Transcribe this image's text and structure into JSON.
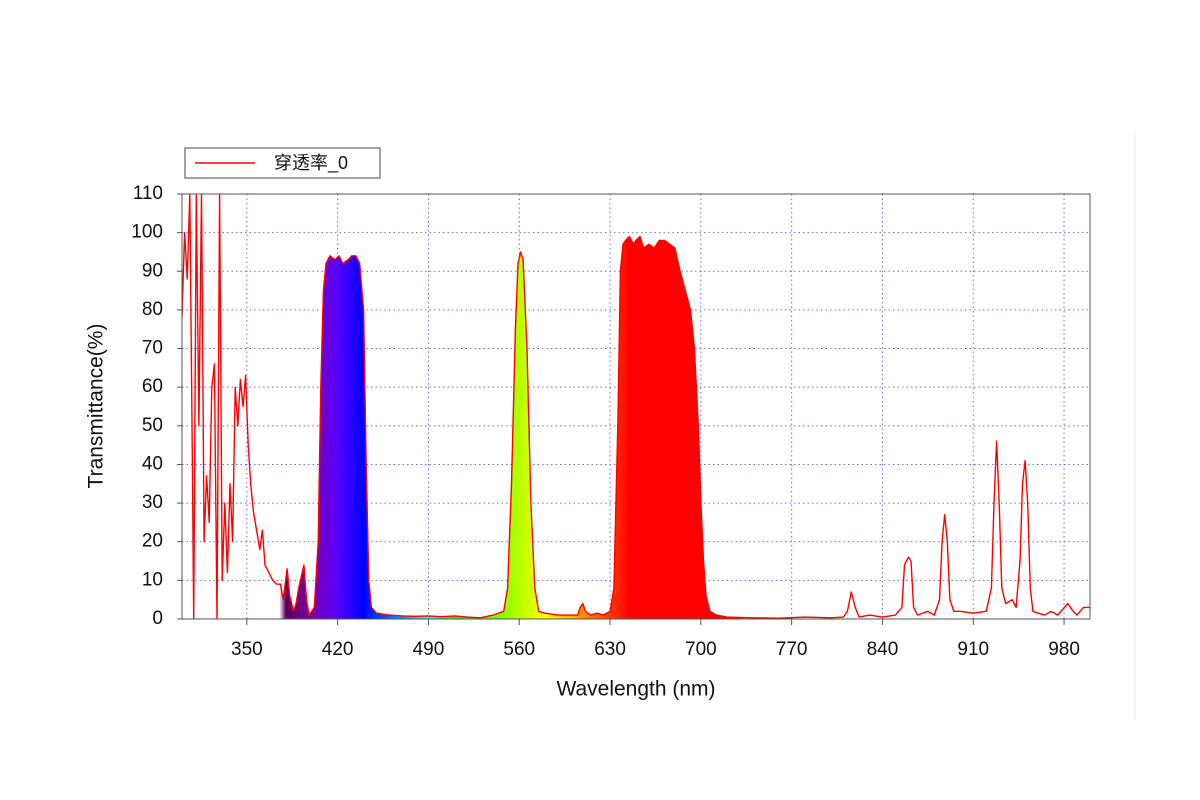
{
  "chart_data": {
    "type": "line",
    "xlabel": "Wavelength (nm)",
    "ylabel": "Transmittance(%)",
    "x": [
      300,
      302,
      304,
      306,
      308,
      309,
      311,
      313,
      315,
      317,
      319,
      321,
      323,
      325,
      327,
      329,
      331,
      333,
      335,
      337,
      339,
      341,
      343,
      345,
      347,
      349,
      351,
      353,
      355,
      358,
      360,
      362,
      364,
      367,
      370,
      373,
      376,
      378,
      381,
      383,
      386,
      388,
      390,
      394,
      396,
      398,
      400,
      402,
      405,
      407,
      409,
      411,
      414,
      418,
      421,
      424,
      428,
      431,
      434,
      437,
      440,
      442,
      444,
      446,
      450,
      460,
      470,
      480,
      490,
      500,
      510,
      520,
      530,
      540,
      548,
      551,
      554,
      557,
      559,
      561,
      563,
      566,
      569,
      572,
      575,
      580,
      590,
      600,
      605,
      607,
      609,
      611,
      615,
      620,
      625,
      630,
      633,
      636,
      638,
      640,
      642,
      645,
      648,
      650,
      653,
      656,
      660,
      664,
      668,
      672,
      676,
      680,
      684,
      688,
      692,
      695,
      698,
      700,
      702,
      704,
      707,
      712,
      720,
      740,
      760,
      780,
      800,
      810,
      813,
      816,
      819,
      822,
      830,
      840,
      850,
      855,
      857,
      860,
      862,
      864,
      867,
      875,
      880,
      884,
      886,
      888,
      890,
      892,
      895,
      900,
      910,
      920,
      924,
      926,
      928,
      930,
      932,
      935,
      940,
      943,
      946,
      948,
      950,
      952,
      954,
      956,
      960,
      965,
      970,
      975,
      983,
      987,
      990,
      995,
      1000
    ],
    "series": [
      {
        "name": "穿透率_0",
        "color": "#ff0000",
        "values": [
          78,
          100,
          88,
          110,
          40,
          0,
          110,
          50,
          110,
          20,
          37,
          25,
          60,
          66,
          0,
          110,
          10,
          30,
          12,
          35,
          20,
          60,
          50,
          62,
          55,
          63,
          45,
          35,
          28,
          22,
          18,
          23,
          14,
          12,
          10,
          9,
          9,
          5,
          13,
          6,
          2,
          4,
          8,
          14,
          5,
          1,
          2,
          3,
          20,
          60,
          85,
          92,
          94,
          93,
          94,
          92,
          93,
          94,
          94,
          92,
          80,
          40,
          10,
          3,
          1.5,
          1,
          0.8,
          0.7,
          0.8,
          0.6,
          0.8,
          0.5,
          0.3,
          1,
          2,
          8,
          35,
          75,
          92,
          95,
          93,
          70,
          30,
          8,
          2,
          1.5,
          1,
          1,
          1,
          3,
          4,
          2,
          1,
          1.5,
          1,
          2,
          8,
          50,
          90,
          97,
          98,
          99,
          97,
          98,
          99,
          96,
          97,
          96,
          98,
          98,
          97,
          96,
          90,
          85,
          80,
          70,
          50,
          30,
          15,
          6,
          2,
          1,
          0.5,
          0.3,
          0.2,
          0.5,
          0.3,
          0.5,
          2,
          7,
          3,
          0.5,
          1,
          0.5,
          1,
          3,
          14,
          16,
          15,
          3,
          1,
          2,
          1,
          5,
          20,
          27,
          20,
          5,
          2,
          2,
          1.5,
          2,
          8,
          30,
          46,
          30,
          8,
          4,
          5,
          3,
          15,
          35,
          41,
          30,
          8,
          2,
          1.5,
          1,
          2,
          1,
          4,
          2,
          1,
          3,
          3
        ]
      }
    ],
    "xlim": [
      300,
      1000
    ],
    "ylim": [
      0,
      110
    ],
    "xticks": [
      350,
      420,
      490,
      560,
      630,
      700,
      770,
      840,
      910,
      980
    ],
    "yticks": [
      0,
      10,
      20,
      30,
      40,
      50,
      60,
      70,
      80,
      90,
      100,
      110
    ],
    "grid": true,
    "legend": "upper left",
    "fill": "spectrum"
  }
}
